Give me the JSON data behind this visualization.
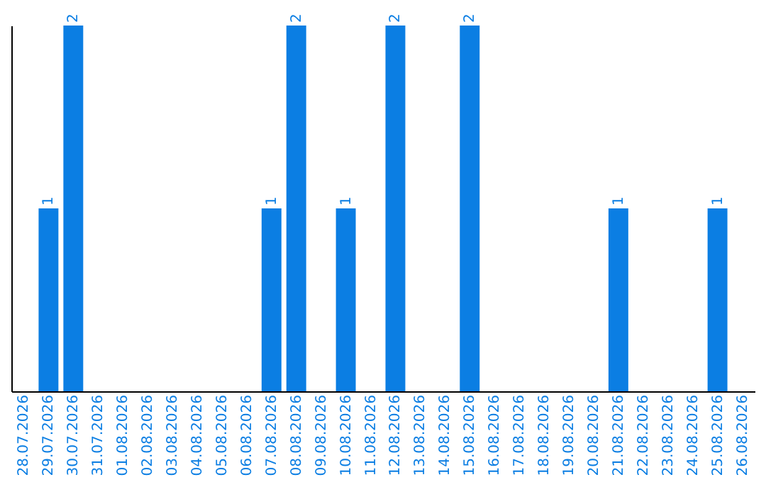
{
  "chart_data": {
    "type": "bar",
    "categories": [
      "28.07.2026",
      "29.07.2026",
      "30.07.2026",
      "31.07.2026",
      "01.08.2026",
      "02.08.2026",
      "03.08.2026",
      "04.08.2026",
      "05.08.2026",
      "06.08.2026",
      "07.08.2026",
      "08.08.2026",
      "09.08.2026",
      "10.08.2026",
      "11.08.2026",
      "12.08.2026",
      "13.08.2026",
      "14.08.2026",
      "15.08.2026",
      "16.08.2026",
      "17.08.2026",
      "18.08.2026",
      "19.08.2026",
      "20.08.2026",
      "21.08.2026",
      "22.08.2026",
      "23.08.2026",
      "24.08.2026",
      "25.08.2026",
      "26.08.2026"
    ],
    "values": [
      0,
      1,
      2,
      0,
      0,
      0,
      0,
      0,
      0,
      0,
      1,
      2,
      0,
      1,
      0,
      2,
      0,
      0,
      2,
      0,
      0,
      0,
      0,
      0,
      1,
      0,
      0,
      0,
      1,
      0
    ],
    "value_labels": [
      null,
      "1",
      "2",
      null,
      null,
      null,
      null,
      null,
      null,
      null,
      "1",
      "2",
      null,
      "1",
      null,
      "2",
      null,
      null,
      "2",
      null,
      null,
      null,
      null,
      null,
      "1",
      null,
      null,
      null,
      "1",
      null
    ],
    "color": "#0b7ee3",
    "grid": false,
    "tick_labels": "x"
  }
}
